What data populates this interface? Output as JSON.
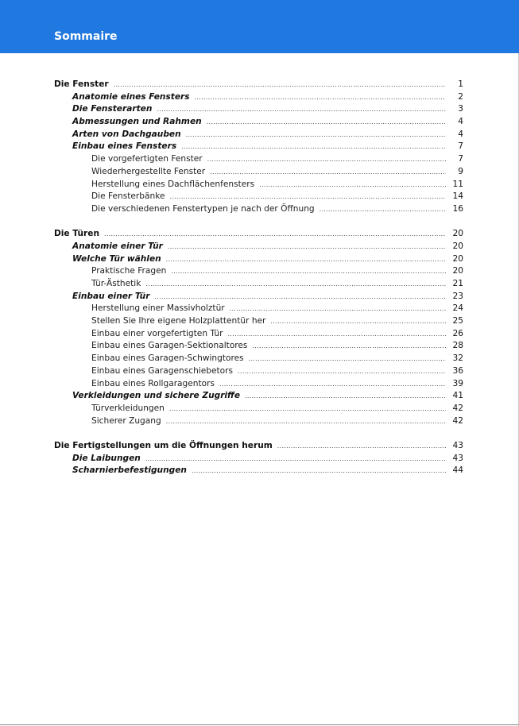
{
  "header": {
    "title": "Sommaire",
    "color": "#2079e0"
  },
  "sections": [
    {
      "entries": [
        {
          "level": 1,
          "title": "Die Fenster",
          "page": "1"
        },
        {
          "level": 2,
          "title": "Anatomie eines Fensters",
          "page": "2"
        },
        {
          "level": 2,
          "title": "Die Fensterarten",
          "page": "3"
        },
        {
          "level": 2,
          "title": "Abmessungen und Rahmen",
          "page": "4"
        },
        {
          "level": 2,
          "title": "Arten von Dachgauben",
          "page": "4"
        },
        {
          "level": 2,
          "title": "Einbau eines Fensters",
          "page": "7"
        },
        {
          "level": 3,
          "title": "Die vorgefertigten Fenster",
          "page": "7"
        },
        {
          "level": 3,
          "title": "Wiederhergestellte Fenster",
          "page": "9"
        },
        {
          "level": 3,
          "title": "Herstellung eines Dachflächenfensters",
          "page": "11"
        },
        {
          "level": 3,
          "title": "Die Fensterbänke",
          "page": "14"
        },
        {
          "level": 3,
          "title": "Die verschiedenen Fenstertypen je nach der Öffnung",
          "page": "16"
        }
      ]
    },
    {
      "entries": [
        {
          "level": 1,
          "title": "Die Türen",
          "page": "20"
        },
        {
          "level": 2,
          "title": "Anatomie einer Tür",
          "page": "20"
        },
        {
          "level": 2,
          "title": "Welche Tür wählen",
          "page": "20"
        },
        {
          "level": 3,
          "title": "Praktische Fragen",
          "page": "20"
        },
        {
          "level": 3,
          "title": "Tür-Ästhetik",
          "page": "21"
        },
        {
          "level": 2,
          "title": "Einbau einer Tür",
          "page": "23"
        },
        {
          "level": 3,
          "title": "Herstellung einer Massivholztür",
          "page": "24"
        },
        {
          "level": 3,
          "title": "Stellen Sie Ihre eigene Holzplattentür her",
          "page": "25"
        },
        {
          "level": 3,
          "title": "Einbau einer vorgefertigten Tür",
          "page": "26"
        },
        {
          "level": 3,
          "title": "Einbau eines Garagen-Sektionaltores",
          "page": "28"
        },
        {
          "level": 3,
          "title": "Einbau eines Garagen-Schwingtores",
          "page": "32"
        },
        {
          "level": 3,
          "title": "Einbau eines Garagenschiebetors",
          "page": "36"
        },
        {
          "level": 3,
          "title": "Einbau eines Rollgaragentors",
          "page": "39"
        },
        {
          "level": 2,
          "title": "Verkleidungen und sichere Zugriffe",
          "page": "41"
        },
        {
          "level": 3,
          "title": "Türverkleidungen",
          "page": "42"
        },
        {
          "level": 3,
          "title": "Sicherer Zugang",
          "page": "42"
        }
      ]
    },
    {
      "entries": [
        {
          "level": 1,
          "title": "Die Fertigstellungen um die Öffnungen herum",
          "page": "43"
        },
        {
          "level": 2,
          "title": "Die Laibungen",
          "page": "43"
        },
        {
          "level": 2,
          "title": "Scharnierbefestigungen",
          "page": "44"
        }
      ]
    }
  ]
}
